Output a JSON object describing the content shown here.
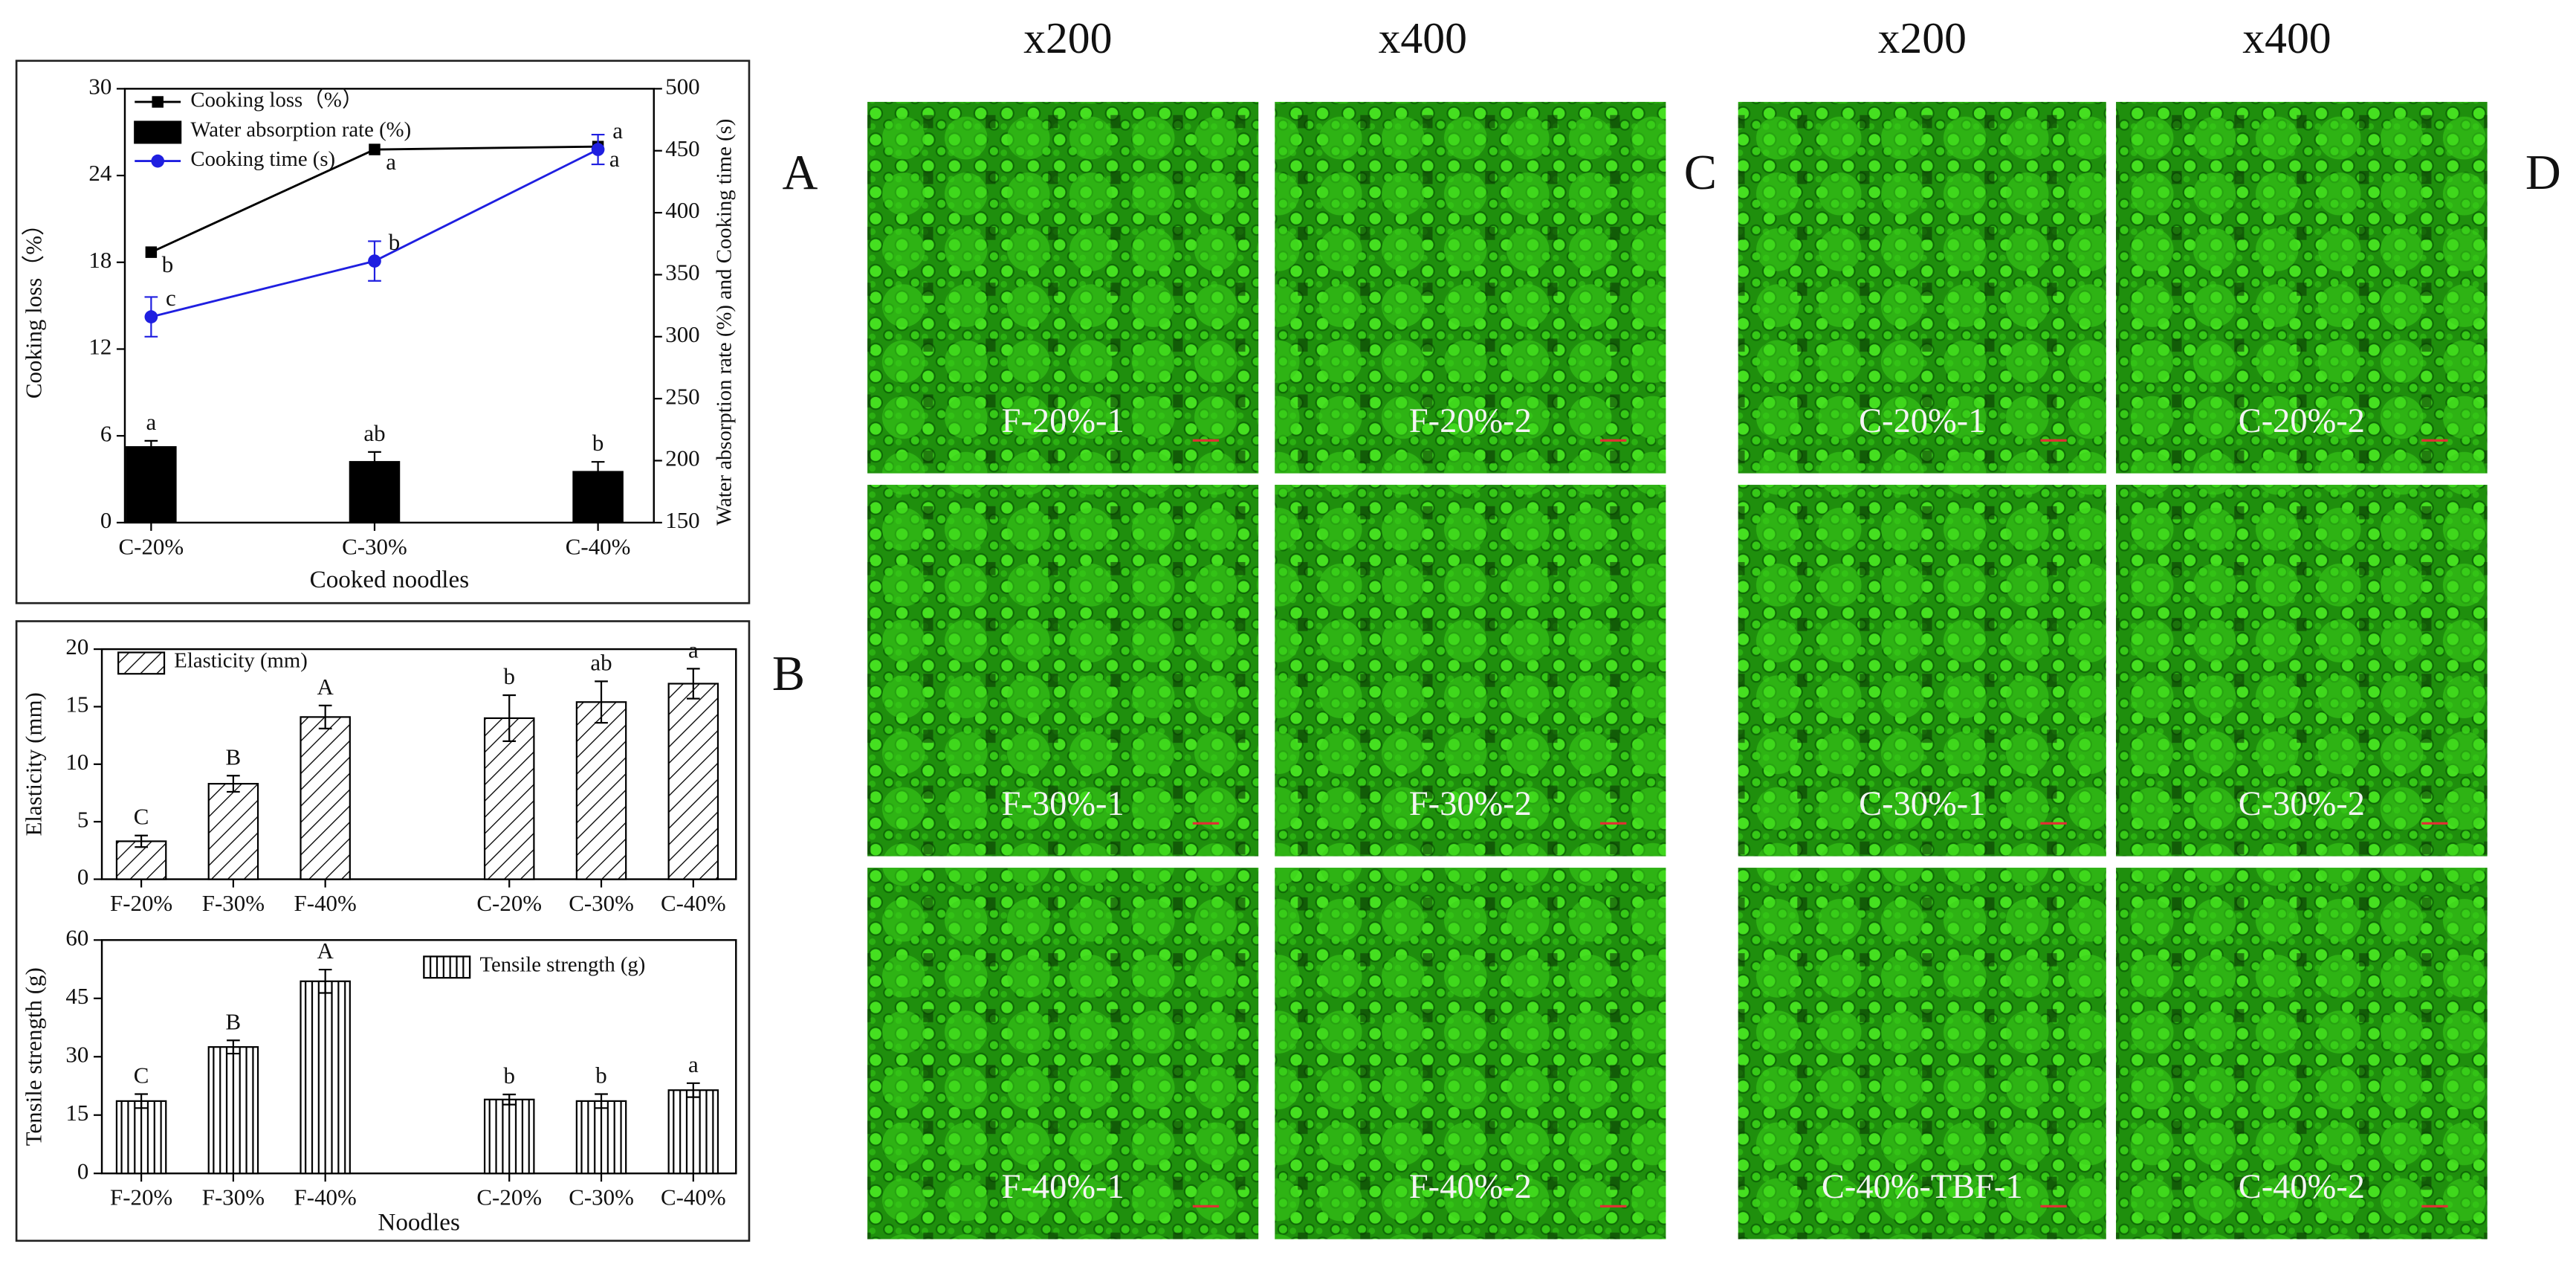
{
  "chart_data": [
    {
      "type": "line",
      "xlabel": "Cooked noodles",
      "ylabel": "Cooking loss（%）",
      "y2label": "Water absorption rate (%) and Cooking time (s)",
      "categories": [
        "C-20%",
        "C-30%",
        "C-40%"
      ],
      "ylim": [
        0,
        30
      ],
      "yticks": [
        0,
        6,
        12,
        18,
        24,
        30
      ],
      "y2lim": [
        150,
        500
      ],
      "y2ticks": [
        150,
        200,
        250,
        300,
        350,
        400,
        450,
        500
      ],
      "legend": "upper left",
      "series": [
        {
          "name": "Cooking loss（%）",
          "type": "line",
          "marker": "square",
          "color": "#000000",
          "values": [
            18.7,
            25.8,
            26.0
          ],
          "letters": [
            "b",
            "a",
            "a"
          ]
        },
        {
          "name": "Water absorption rate (%)",
          "type": "bar",
          "axis": "y2",
          "color": "#000000",
          "values": [
            211,
            199,
            191
          ],
          "errors": [
            5,
            8,
            8
          ],
          "letters": [
            "a",
            "ab",
            "b"
          ]
        },
        {
          "name": "Cooking time (s)",
          "type": "line",
          "axis": "y2",
          "marker": "circle",
          "color": "#1f1fe0",
          "values": [
            316,
            361,
            451
          ],
          "errors": [
            16,
            16,
            12
          ],
          "letters": [
            "c",
            "b",
            "a"
          ]
        }
      ]
    },
    {
      "type": "bar",
      "ylabel": "Elasticity (mm)",
      "categories": [
        "F-20%",
        "F-30%",
        "F-40%",
        null,
        "C-20%",
        "C-30%",
        "C-40%"
      ],
      "ylim": [
        0,
        20
      ],
      "yticks": [
        0,
        5,
        10,
        15,
        20
      ],
      "legend": "upper left",
      "series": [
        {
          "name": "Elasticity (mm)",
          "type": "bar",
          "hatch": "diagonal",
          "color": "#000000",
          "values": [
            3.3,
            8.3,
            14.1,
            null,
            14.0,
            15.4,
            17.0
          ],
          "errors": [
            0.5,
            0.7,
            1.0,
            null,
            2.0,
            1.8,
            1.3
          ],
          "letters": [
            "C",
            "B",
            "A",
            null,
            "b",
            "ab",
            "a"
          ]
        }
      ]
    },
    {
      "type": "bar",
      "xlabel": "Noodles",
      "ylabel": "Tensile strength (g)",
      "categories": [
        "F-20%",
        "F-30%",
        "F-40%",
        null,
        "C-20%",
        "C-30%",
        "C-40%"
      ],
      "ylim": [
        0,
        60
      ],
      "yticks": [
        0,
        15,
        30,
        45,
        60
      ],
      "legend": "upper right",
      "series": [
        {
          "name": "Tensile strength (g)",
          "type": "bar",
          "hatch": "vertical",
          "color": "#000000",
          "values": [
            18.6,
            32.5,
            49.4,
            null,
            19.0,
            18.6,
            21.4
          ],
          "errors": [
            1.8,
            1.7,
            3.0,
            null,
            1.3,
            1.8,
            1.8
          ],
          "letters": [
            "C",
            "B",
            "A",
            null,
            "b",
            "b",
            "a"
          ]
        }
      ]
    }
  ],
  "figure": {
    "panel_letters": [
      "A",
      "B",
      "C",
      "D"
    ],
    "column_headers": [
      "x200",
      "x400",
      "x200",
      "x400"
    ],
    "micrographs": [
      [
        "F-20%-1",
        "F-30%-1",
        "F-40%-1"
      ],
      [
        "F-20%-2",
        "F-30%-2",
        "F-40%-2"
      ],
      [
        "C-20%-1",
        "C-30%-1",
        "C-40%-TBF-1"
      ],
      [
        "C-20%-2",
        "C-30%-2",
        "C-40%-2"
      ]
    ]
  }
}
